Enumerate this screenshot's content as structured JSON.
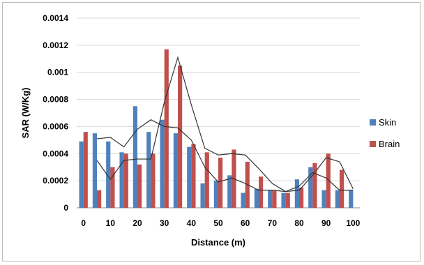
{
  "chart_data": {
    "type": "bar",
    "title": "",
    "xlabel": "Distance (m)",
    "ylabel": "SAR (W/Kg)",
    "ylim": [
      0,
      0.0014
    ],
    "yticks": [
      "0",
      "0.0002",
      "0.0004",
      "0.0006",
      "0.0008",
      "0.001",
      "0.0012",
      "0.0014"
    ],
    "categories": [
      "0",
      "5",
      "10",
      "15",
      "20",
      "25",
      "30",
      "35",
      "40",
      "45",
      "50",
      "55",
      "60",
      "65",
      "70",
      "75",
      "80",
      "85",
      "90",
      "95",
      "100"
    ],
    "xtick_labels": [
      "0",
      "10",
      "20",
      "30",
      "40",
      "50",
      "60",
      "70",
      "80",
      "90",
      "100"
    ],
    "grid": "horizontal",
    "legend_position": "right",
    "series": [
      {
        "name": "Skin",
        "color": "#4f81bd",
        "values": [
          0.00049,
          0.00055,
          0.00049,
          0.00041,
          0.00075,
          0.00056,
          0.00065,
          0.00055,
          0.00045,
          0.00018,
          0.0002,
          0.00024,
          0.00011,
          0.00014,
          0.00013,
          0.00011,
          0.00021,
          0.0003,
          0.00013,
          0.00013,
          0.00013
        ]
      },
      {
        "name": "Brain",
        "color": "#c0504d",
        "values": [
          0.00056,
          0.00013,
          0.0003,
          0.0004,
          0.00032,
          0.0004,
          0.00117,
          0.00105,
          0.00047,
          0.00041,
          0.00037,
          0.00043,
          0.00034,
          0.00023,
          0.00013,
          0.00011,
          0.00015,
          0.00033,
          0.0004,
          0.00028,
          null
        ]
      }
    ],
    "trendlines": [
      {
        "of": "Skin",
        "values": [
          null,
          0.00051,
          0.00052,
          0.00045,
          0.00058,
          0.00065,
          0.0006,
          0.00059,
          0.0005,
          0.0003,
          0.00019,
          0.00022,
          0.00018,
          0.00013,
          0.00013,
          0.00012,
          0.00016,
          0.00026,
          0.00022,
          0.00013,
          0.00013
        ]
      },
      {
        "of": "Brain",
        "values": [
          null,
          0.00035,
          0.00021,
          0.00035,
          0.00036,
          0.00036,
          0.00078,
          0.00111,
          0.00076,
          0.00044,
          0.00039,
          0.0004,
          0.00039,
          0.00029,
          0.00018,
          0.00012,
          0.00013,
          0.00024,
          0.00037,
          0.00034,
          0.00014
        ]
      }
    ]
  }
}
